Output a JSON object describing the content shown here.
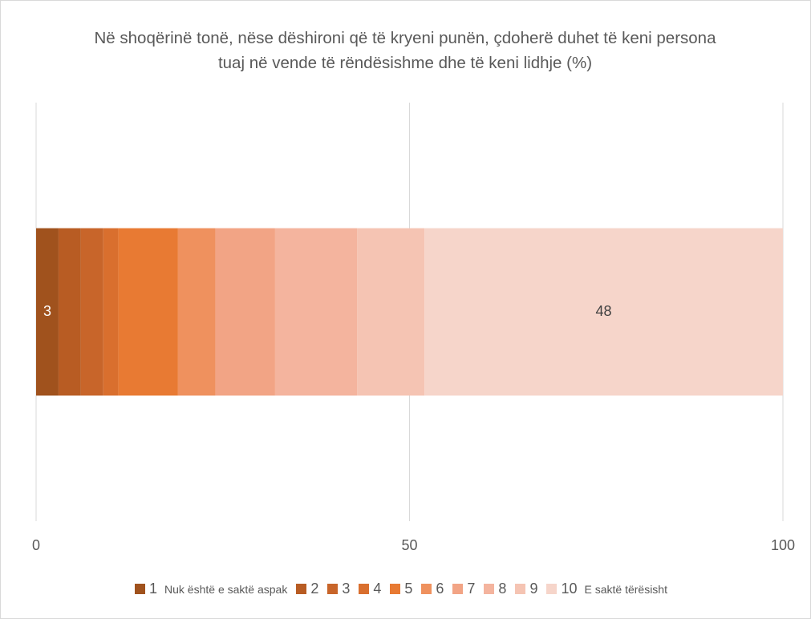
{
  "chart_data": {
    "type": "stacked_barh",
    "title": "Në shoqërinë tonë, nëse dëshironi që të kryeni punën, çdoherë duhet të keni persona tuaj në vende të rëndësishme dhe të keni lidhje (%)",
    "categories": [
      null
    ],
    "series": [
      {
        "name": "1",
        "note": "Nuk është e saktë aspak",
        "color": "#a0521d",
        "values": [
          3
        ],
        "labeled": true
      },
      {
        "name": "2",
        "color": "#b85c23",
        "values": [
          3
        ]
      },
      {
        "name": "3",
        "color": "#c8652a",
        "values": [
          3
        ]
      },
      {
        "name": "4",
        "color": "#d96f2e",
        "values": [
          2
        ]
      },
      {
        "name": "5",
        "color": "#e87a33",
        "values": [
          8
        ]
      },
      {
        "name": "6",
        "color": "#ef915e",
        "values": [
          5
        ]
      },
      {
        "name": "7",
        "color": "#f2a485",
        "values": [
          8
        ]
      },
      {
        "name": "8",
        "color": "#f4b49e",
        "values": [
          11
        ]
      },
      {
        "name": "9",
        "color": "#f5c4b3",
        "values": [
          9
        ]
      },
      {
        "name": "10",
        "note": "E saktë tërësisht",
        "color": "#f6d5ca",
        "values": [
          48
        ],
        "labeled": true
      }
    ],
    "xlim": [
      0,
      100
    ],
    "xticks": [
      0,
      50,
      100
    ],
    "grid": true,
    "legend": "bottom"
  }
}
